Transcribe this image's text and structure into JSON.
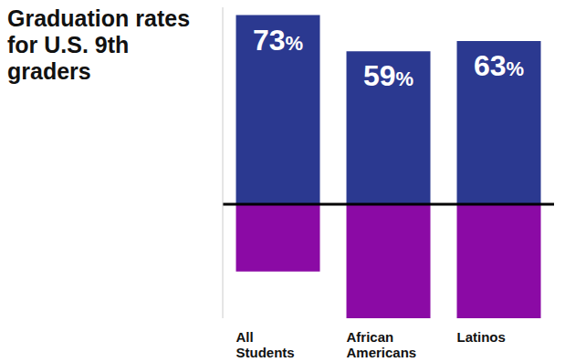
{
  "chart_data": {
    "type": "bar",
    "title": "Graduation rates for U.S. 9th graders",
    "categories": [
      "All Students",
      "African Americans",
      "Latinos"
    ],
    "series": [
      {
        "color": "#2b3990",
        "values": [
          73,
          59,
          63
        ],
        "value_labels": [
          "73%",
          "59%",
          "63%"
        ],
        "data_labels": true
      },
      {
        "color": "#8b0aa5",
        "values": [
          -26,
          -44,
          -44
        ]
      }
    ],
    "stacked": true,
    "ylim": [
      -44,
      76
    ],
    "tick_labels": "x",
    "grid": false
  }
}
